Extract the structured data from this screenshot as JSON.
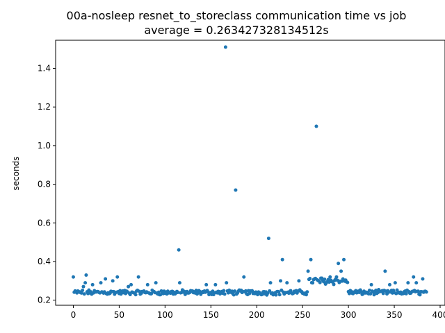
{
  "chart_data": {
    "type": "scatter",
    "title": "00a-nosleep resnet_to_storeclass communication time vs job",
    "subtitle": "average = 0.263427328134512s",
    "xlabel": "",
    "ylabel": "seconds",
    "xlim": [
      -19.3,
      405.3
    ],
    "ylim": [
      0.1737,
      1.5455
    ],
    "xticks": [
      0,
      50,
      100,
      150,
      200,
      250,
      300,
      350,
      400
    ],
    "yticks": [
      0.2,
      0.4,
      0.6,
      0.8,
      1.0,
      1.2,
      1.4
    ],
    "ytick_labels": [
      "0.2",
      "0.4",
      "0.6",
      "0.8",
      "1.0",
      "1.2",
      "1.4"
    ],
    "grid": false,
    "marker_color": "#1f77b4",
    "series": [
      {
        "outliers": [
          [
            0,
            0.32
          ],
          [
            11,
            0.27
          ],
          [
            13,
            0.29
          ],
          [
            14,
            0.33
          ],
          [
            21,
            0.28
          ],
          [
            30,
            0.29
          ],
          [
            35,
            0.31
          ],
          [
            43,
            0.3
          ],
          [
            48,
            0.32
          ],
          [
            60,
            0.27
          ],
          [
            63,
            0.28
          ],
          [
            71,
            0.32
          ],
          [
            81,
            0.28
          ],
          [
            90,
            0.29
          ],
          [
            115,
            0.46
          ],
          [
            116,
            0.29
          ],
          [
            145,
            0.28
          ],
          [
            155,
            0.28
          ],
          [
            166,
            1.51
          ],
          [
            167,
            0.29
          ],
          [
            177,
            0.77
          ],
          [
            186,
            0.32
          ],
          [
            213,
            0.52
          ],
          [
            215,
            0.29
          ],
          [
            226,
            0.3
          ],
          [
            228,
            0.41
          ],
          [
            233,
            0.29
          ],
          [
            246,
            0.3
          ],
          [
            256,
            0.35
          ],
          [
            259,
            0.41
          ],
          [
            265,
            1.1
          ],
          [
            280,
            0.32
          ],
          [
            287,
            0.32
          ],
          [
            289,
            0.39
          ],
          [
            292,
            0.35
          ],
          [
            295,
            0.41
          ],
          [
            325,
            0.28
          ],
          [
            340,
            0.35
          ],
          [
            345,
            0.28
          ],
          [
            351,
            0.29
          ],
          [
            365,
            0.29
          ],
          [
            371,
            0.32
          ],
          [
            374,
            0.29
          ],
          [
            381,
            0.31
          ]
        ],
        "regular": {
          "x_ranges": [
            [
              0,
              255
            ],
            [
              256,
              299
            ],
            [
              300,
              385
            ]
          ],
          "y_ranges": [
            [
              0.22,
              0.26
            ],
            [
              0.27,
              0.33
            ],
            [
              0.22,
              0.26
            ]
          ]
        }
      }
    ]
  }
}
